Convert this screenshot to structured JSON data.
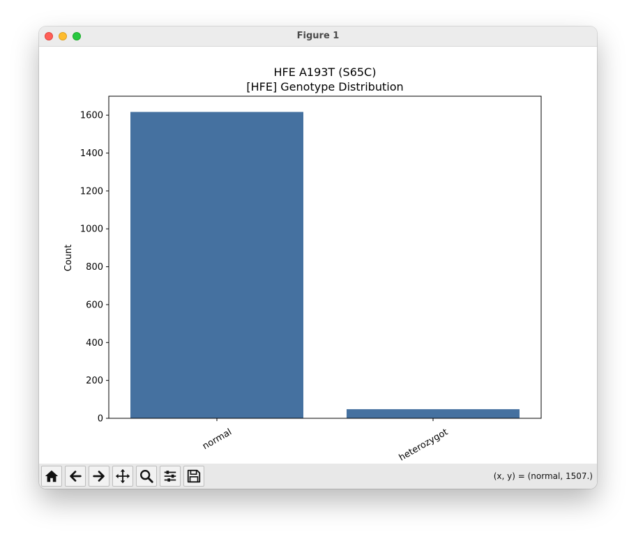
{
  "window": {
    "title": "Figure 1"
  },
  "chart_data": {
    "type": "bar",
    "title": "HFE A193T (S65C)",
    "subtitle": "[HFE] Genotype Distribution",
    "xlabel": "",
    "ylabel": "Count",
    "categories": [
      "normal",
      "heterozygot"
    ],
    "values": [
      1617,
      48
    ],
    "ylim": [
      0,
      1700
    ],
    "yticks": [
      0,
      200,
      400,
      600,
      800,
      1000,
      1200,
      1400,
      1600
    ],
    "ytick_labels": [
      "0",
      "200",
      "400",
      "600",
      "800",
      "1000",
      "1200",
      "1400",
      "1600"
    ],
    "bar_color": "#4571a0",
    "grid": false,
    "legend": "none"
  },
  "toolbar": {
    "buttons": [
      {
        "name": "home",
        "icon": "home-icon"
      },
      {
        "name": "back",
        "icon": "arrow-left-icon"
      },
      {
        "name": "forward",
        "icon": "arrow-right-icon"
      },
      {
        "name": "pan",
        "icon": "move-icon"
      },
      {
        "name": "zoom",
        "icon": "magnifier-icon"
      },
      {
        "name": "configure",
        "icon": "sliders-icon"
      },
      {
        "name": "save",
        "icon": "floppy-disk-icon"
      }
    ],
    "coordinates": "(x, y) = (normal, 1507.)"
  }
}
